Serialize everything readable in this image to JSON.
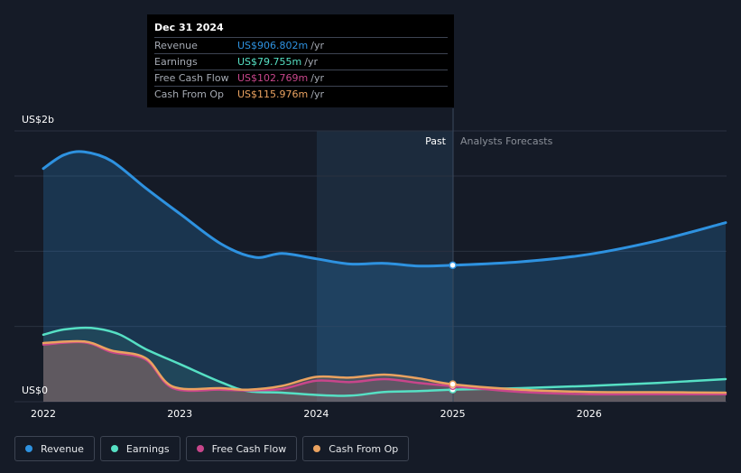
{
  "chart_data": {
    "type": "area",
    "y_axis_labels": {
      "top": "US$2b",
      "bottom": "US$0"
    },
    "x_tick_labels": [
      "2022",
      "2023",
      "2024",
      "2025",
      "2026"
    ],
    "ylim": [
      0,
      1800
    ],
    "xlim": [
      2021.9,
      2027.0
    ],
    "divider_x": 2025.0,
    "past_label": "Past",
    "forecast_label": "Analysts Forecasts",
    "grid": true,
    "units": "US$ millions",
    "series": [
      {
        "name": "Revenue",
        "color": "#2e92e0",
        "points": [
          [
            2022.0,
            1550
          ],
          [
            2022.15,
            1640
          ],
          [
            2022.3,
            1660
          ],
          [
            2022.5,
            1600
          ],
          [
            2022.75,
            1420
          ],
          [
            2023.0,
            1250
          ],
          [
            2023.3,
            1050
          ],
          [
            2023.55,
            960
          ],
          [
            2023.75,
            985
          ],
          [
            2024.0,
            950
          ],
          [
            2024.25,
            915
          ],
          [
            2024.5,
            920
          ],
          [
            2024.75,
            902
          ],
          [
            2025.0,
            907
          ],
          [
            2025.5,
            930
          ],
          [
            2026.0,
            980
          ],
          [
            2026.5,
            1070
          ],
          [
            2027.0,
            1190
          ]
        ]
      },
      {
        "name": "Earnings",
        "color": "#56e0c4",
        "points": [
          [
            2022.0,
            445
          ],
          [
            2022.15,
            480
          ],
          [
            2022.35,
            490
          ],
          [
            2022.55,
            450
          ],
          [
            2022.75,
            350
          ],
          [
            2023.0,
            250
          ],
          [
            2023.3,
            130
          ],
          [
            2023.5,
            70
          ],
          [
            2023.75,
            60
          ],
          [
            2024.0,
            45
          ],
          [
            2024.25,
            40
          ],
          [
            2024.5,
            65
          ],
          [
            2024.75,
            70
          ],
          [
            2025.0,
            80
          ],
          [
            2025.5,
            90
          ],
          [
            2026.0,
            105
          ],
          [
            2026.5,
            125
          ],
          [
            2027.0,
            150
          ]
        ]
      },
      {
        "name": "Free Cash Flow",
        "color": "#c8468b",
        "points": [
          [
            2022.0,
            380
          ],
          [
            2022.3,
            395
          ],
          [
            2022.5,
            330
          ],
          [
            2022.75,
            280
          ],
          [
            2022.95,
            90
          ],
          [
            2023.3,
            80
          ],
          [
            2023.5,
            75
          ],
          [
            2023.75,
            85
          ],
          [
            2024.0,
            140
          ],
          [
            2024.25,
            130
          ],
          [
            2024.5,
            150
          ],
          [
            2024.75,
            125
          ],
          [
            2025.0,
            103
          ],
          [
            2025.5,
            65
          ],
          [
            2026.0,
            50
          ],
          [
            2026.5,
            50
          ],
          [
            2027.0,
            50
          ]
        ]
      },
      {
        "name": "Cash From Op",
        "color": "#eaa260",
        "points": [
          [
            2022.0,
            390
          ],
          [
            2022.3,
            400
          ],
          [
            2022.5,
            340
          ],
          [
            2022.75,
            290
          ],
          [
            2022.95,
            100
          ],
          [
            2023.3,
            90
          ],
          [
            2023.5,
            80
          ],
          [
            2023.75,
            105
          ],
          [
            2024.0,
            165
          ],
          [
            2024.25,
            160
          ],
          [
            2024.5,
            180
          ],
          [
            2024.75,
            155
          ],
          [
            2025.0,
            116
          ],
          [
            2025.5,
            80
          ],
          [
            2026.0,
            65
          ],
          [
            2026.5,
            63
          ],
          [
            2027.0,
            60
          ]
        ]
      }
    ]
  },
  "tooltip": {
    "date": "Dec 31 2024",
    "rows": [
      {
        "label": "Revenue",
        "value": "US$906.802m",
        "unit": "/yr",
        "color": "#2e92e0"
      },
      {
        "label": "Earnings",
        "value": "US$79.755m",
        "unit": "/yr",
        "color": "#56e0c4"
      },
      {
        "label": "Free Cash Flow",
        "value": "US$102.769m",
        "unit": "/yr",
        "color": "#c8468b"
      },
      {
        "label": "Cash From Op",
        "value": "US$115.976m",
        "unit": "/yr",
        "color": "#eaa260"
      }
    ]
  },
  "legend": [
    {
      "label": "Revenue",
      "color": "#2e92e0"
    },
    {
      "label": "Earnings",
      "color": "#56e0c4"
    },
    {
      "label": "Free Cash Flow",
      "color": "#c8468b"
    },
    {
      "label": "Cash From Op",
      "color": "#eaa260"
    }
  ]
}
